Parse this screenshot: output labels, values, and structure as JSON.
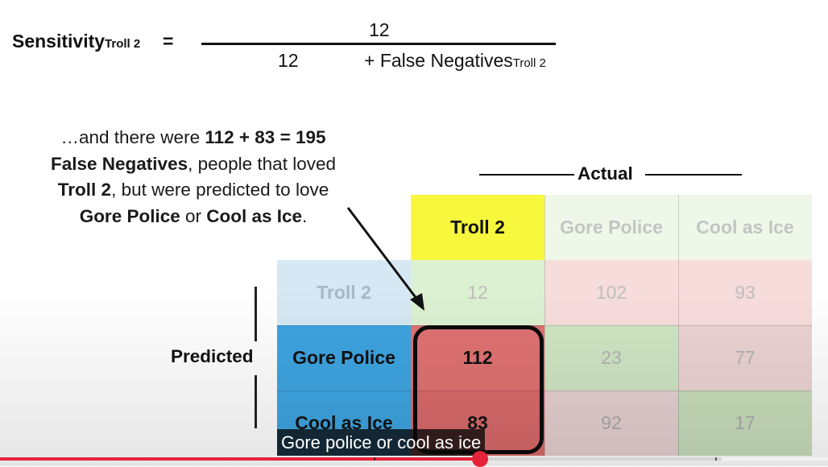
{
  "formula": {
    "label": "Sensitivity",
    "label_sub": "Troll 2",
    "equals": "=",
    "numerator": "12",
    "denominator_value": "12",
    "denominator_plus": "+ False Negatives",
    "denominator_sub": "Troll 2"
  },
  "explanation": {
    "part1": "…and there were ",
    "sum": "112 + 83 = 195",
    "part2": "False Negatives",
    "part3": ", people that loved ",
    "movie1": "Troll 2",
    "part4": ", but were predicted to love ",
    "movie2": "Gore Police",
    "part5": " or ",
    "movie3": "Cool as Ice",
    "part6": "."
  },
  "matrix": {
    "actual_label": "Actual",
    "predicted_label": "Predicted",
    "col_headers": [
      "Troll 2",
      "Gore Police",
      "Cool as Ice"
    ],
    "row_headers": [
      "Troll 2",
      "Gore Police",
      "Cool as Ice"
    ],
    "rows": [
      [
        "12",
        "102",
        "93"
      ],
      [
        "112",
        "23",
        "77"
      ],
      [
        "83",
        "92",
        "17"
      ]
    ]
  },
  "colors": {
    "highlight_header": "#f7f73d",
    "row_header_active": "#3ea4e0",
    "row_header_faded": "#d5e8f3",
    "correct_faded": "#dcf0d2",
    "wrong_faded": "#f7dcdc",
    "wrong_active": "#e07272",
    "progress": "#e62338"
  },
  "player": {
    "caption": "Gore police or cool as ice",
    "progress_fraction": 0.58
  }
}
